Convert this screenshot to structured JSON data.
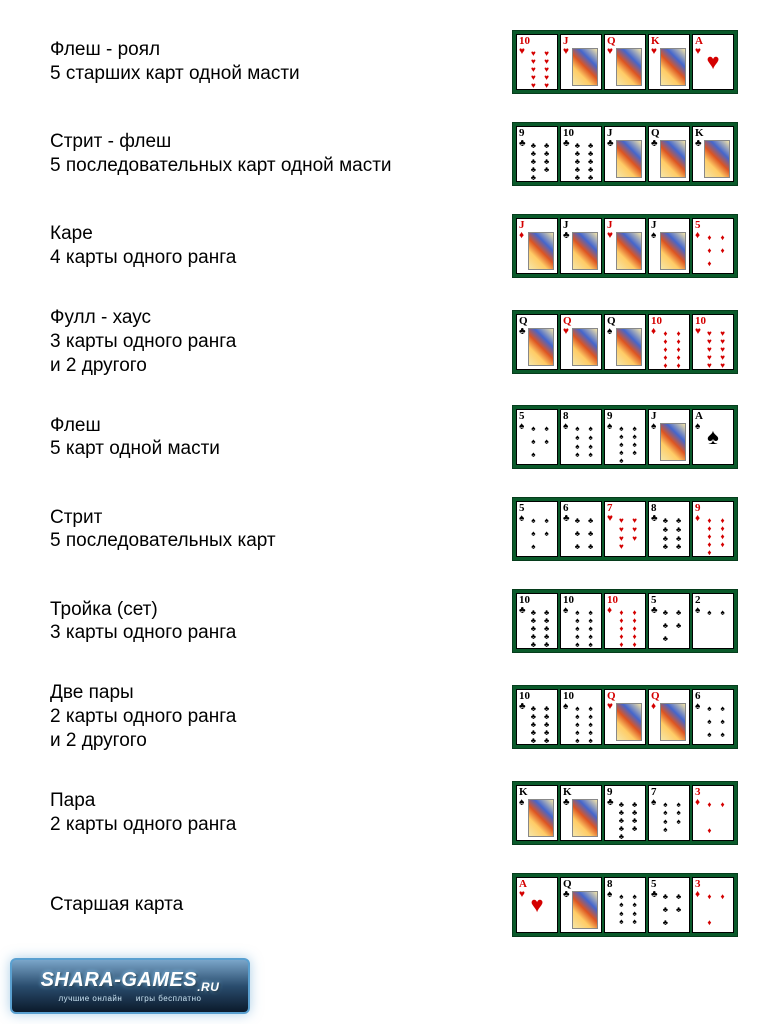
{
  "suits": {
    "hearts": {
      "glyph": "♥",
      "color": "#d40000"
    },
    "diamonds": {
      "glyph": "♦",
      "color": "#d40000"
    },
    "clubs": {
      "glyph": "♣",
      "color": "#000000"
    },
    "spades": {
      "glyph": "♠",
      "color": "#000000"
    }
  },
  "colors": {
    "felt": "#0a5a2a",
    "felt_border": "#063d1c",
    "card_bg": "#ffffff",
    "card_border": "#000000",
    "background": "#ffffff",
    "text": "#000000"
  },
  "typography": {
    "body_fontsize": 19,
    "rank_fontsize": 11
  },
  "hands": [
    {
      "title": "Флеш - роял",
      "desc": "5 старших карт одной масти",
      "desc2": "",
      "cards": [
        {
          "rank": "10",
          "suit": "hearts",
          "pips": 10
        },
        {
          "rank": "J",
          "suit": "hearts",
          "face": true
        },
        {
          "rank": "Q",
          "suit": "hearts",
          "face": true
        },
        {
          "rank": "K",
          "suit": "hearts",
          "face": true
        },
        {
          "rank": "A",
          "suit": "hearts",
          "pips": 1
        }
      ]
    },
    {
      "title": "Стрит - флеш",
      "desc": "5 последовательных карт одной масти",
      "desc2": "",
      "cards": [
        {
          "rank": "9",
          "suit": "clubs",
          "pips": 9
        },
        {
          "rank": "10",
          "suit": "clubs",
          "pips": 10
        },
        {
          "rank": "J",
          "suit": "clubs",
          "face": true
        },
        {
          "rank": "Q",
          "suit": "clubs",
          "face": true
        },
        {
          "rank": "K",
          "suit": "clubs",
          "face": true
        }
      ]
    },
    {
      "title": "Каре",
      "desc": "4 карты одного ранга",
      "desc2": "",
      "cards": [
        {
          "rank": "J",
          "suit": "diamonds",
          "face": true
        },
        {
          "rank": "J",
          "suit": "clubs",
          "face": true
        },
        {
          "rank": "J",
          "suit": "hearts",
          "face": true
        },
        {
          "rank": "J",
          "suit": "spades",
          "face": true
        },
        {
          "rank": "5",
          "suit": "diamonds",
          "pips": 5
        }
      ]
    },
    {
      "title": "Фулл - хаус",
      "desc": "3 карты одного ранга",
      "desc2": "и 2 другого",
      "cards": [
        {
          "rank": "Q",
          "suit": "clubs",
          "face": true
        },
        {
          "rank": "Q",
          "suit": "hearts",
          "face": true
        },
        {
          "rank": "Q",
          "suit": "spades",
          "face": true
        },
        {
          "rank": "10",
          "suit": "diamonds",
          "pips": 10
        },
        {
          "rank": "10",
          "suit": "hearts",
          "pips": 10
        }
      ]
    },
    {
      "title": "Флеш",
      "desc": "5 карт одной масти",
      "desc2": "",
      "cards": [
        {
          "rank": "5",
          "suit": "spades",
          "pips": 5
        },
        {
          "rank": "8",
          "suit": "spades",
          "pips": 8
        },
        {
          "rank": "9",
          "suit": "spades",
          "pips": 9
        },
        {
          "rank": "J",
          "suit": "spades",
          "face": true
        },
        {
          "rank": "A",
          "suit": "spades",
          "pips": 1
        }
      ]
    },
    {
      "title": "Стрит",
      "desc": "5 последовательных карт",
      "desc2": "",
      "cards": [
        {
          "rank": "5",
          "suit": "spades",
          "pips": 5
        },
        {
          "rank": "6",
          "suit": "clubs",
          "pips": 6
        },
        {
          "rank": "7",
          "suit": "hearts",
          "pips": 7
        },
        {
          "rank": "8",
          "suit": "clubs",
          "pips": 8
        },
        {
          "rank": "9",
          "suit": "diamonds",
          "pips": 9
        }
      ]
    },
    {
      "title": "Тройка (сет)",
      "desc": "3 карты одного ранга",
      "desc2": "",
      "cards": [
        {
          "rank": "10",
          "suit": "clubs",
          "pips": 10
        },
        {
          "rank": "10",
          "suit": "spades",
          "pips": 10
        },
        {
          "rank": "10",
          "suit": "diamonds",
          "pips": 10
        },
        {
          "rank": "5",
          "suit": "clubs",
          "pips": 5
        },
        {
          "rank": "2",
          "suit": "spades",
          "pips": 2
        }
      ]
    },
    {
      "title": "Две пары",
      "desc": "2 карты одного ранга",
      "desc2": "и 2 другого",
      "cards": [
        {
          "rank": "10",
          "suit": "clubs",
          "pips": 10
        },
        {
          "rank": "10",
          "suit": "spades",
          "pips": 10
        },
        {
          "rank": "Q",
          "suit": "hearts",
          "face": true
        },
        {
          "rank": "Q",
          "suit": "diamonds",
          "face": true
        },
        {
          "rank": "6",
          "suit": "spades",
          "pips": 6
        }
      ]
    },
    {
      "title": "Пара",
      "desc": "2 карты одного ранга",
      "desc2": "",
      "cards": [
        {
          "rank": "K",
          "suit": "spades",
          "face": true
        },
        {
          "rank": "K",
          "suit": "clubs",
          "face": true
        },
        {
          "rank": "9",
          "suit": "clubs",
          "pips": 9
        },
        {
          "rank": "7",
          "suit": "spades",
          "pips": 7
        },
        {
          "rank": "3",
          "suit": "diamonds",
          "pips": 3
        }
      ]
    },
    {
      "title": "Старшая карта",
      "desc": "",
      "desc2": "",
      "cards": [
        {
          "rank": "A",
          "suit": "hearts",
          "pips": 1
        },
        {
          "rank": "Q",
          "suit": "clubs",
          "face": true
        },
        {
          "rank": "8",
          "suit": "spades",
          "pips": 8
        },
        {
          "rank": "5",
          "suit": "clubs",
          "pips": 5
        },
        {
          "rank": "3",
          "suit": "diamonds",
          "pips": 3
        }
      ]
    }
  ],
  "logo": {
    "main": "SHARA-GAMES",
    "suffix": ".RU",
    "sub_left": "лучшие онлайн",
    "sub_right": "игры бесплатно"
  }
}
